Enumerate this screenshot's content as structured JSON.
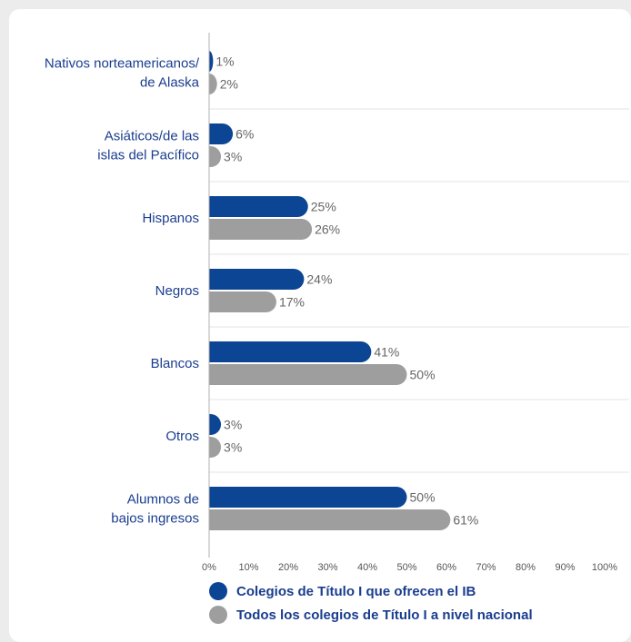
{
  "chart_data": {
    "type": "bar",
    "orientation": "horizontal",
    "categories": [
      [
        "Nativos norteamericanos/",
        "de Alaska"
      ],
      [
        "Asiáticos/de las",
        "islas del Pacífico"
      ],
      [
        "Hispanos"
      ],
      [
        "Negros"
      ],
      [
        "Blancos"
      ],
      [
        "Otros"
      ],
      [
        "Alumnos de",
        "bajos ingresos"
      ]
    ],
    "series": [
      {
        "name": "Colegios de Título I que ofrecen el IB",
        "color": "#0c4594",
        "values": [
          1,
          6,
          25,
          24,
          41,
          3,
          50
        ]
      },
      {
        "name": "Todos los colegios de Título I a nivel nacional",
        "color": "#9e9e9e",
        "values": [
          2,
          3,
          26,
          17,
          50,
          3,
          61
        ]
      }
    ],
    "value_suffix": "%",
    "xlim": [
      0,
      100
    ],
    "xticks": [
      "0%",
      "10%",
      "20%",
      "30%",
      "40%",
      "50%",
      "60%",
      "70%",
      "80%",
      "90%",
      "100%"
    ],
    "grid": true,
    "legend_position": "bottom"
  }
}
